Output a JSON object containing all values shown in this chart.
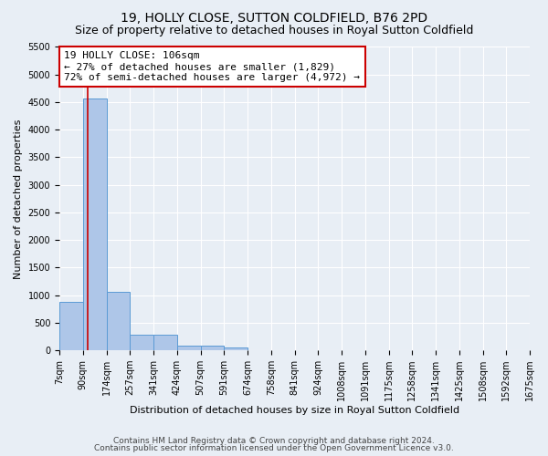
{
  "title": "19, HOLLY CLOSE, SUTTON COLDFIELD, B76 2PD",
  "subtitle": "Size of property relative to detached houses in Royal Sutton Coldfield",
  "xlabel": "Distribution of detached houses by size in Royal Sutton Coldfield",
  "ylabel": "Number of detached properties",
  "footer_line1": "Contains HM Land Registry data © Crown copyright and database right 2024.",
  "footer_line2": "Contains public sector information licensed under the Open Government Licence v3.0.",
  "annotation_title": "19 HOLLY CLOSE: 106sqm",
  "annotation_line1": "← 27% of detached houses are smaller (1,829)",
  "annotation_line2": "72% of semi-detached houses are larger (4,972) →",
  "bin_labels": [
    "7sqm",
    "90sqm",
    "174sqm",
    "257sqm",
    "341sqm",
    "424sqm",
    "507sqm",
    "591sqm",
    "674sqm",
    "758sqm",
    "841sqm",
    "924sqm",
    "1008sqm",
    "1091sqm",
    "1175sqm",
    "1258sqm",
    "1341sqm",
    "1425sqm",
    "1508sqm",
    "1592sqm",
    "1675sqm"
  ],
  "bar_values": [
    880,
    4560,
    1060,
    290,
    290,
    90,
    90,
    50,
    0,
    0,
    0,
    0,
    0,
    0,
    0,
    0,
    0,
    0,
    0,
    0
  ],
  "bar_color": "#aec6e8",
  "bar_edge_color": "#5b9bd5",
  "vline_bin": 1,
  "vline_color": "#cc0000",
  "annotation_box_color": "#ffffff",
  "annotation_box_edge_color": "#cc0000",
  "ylim": [
    0,
    5500
  ],
  "yticks": [
    0,
    500,
    1000,
    1500,
    2000,
    2500,
    3000,
    3500,
    4000,
    4500,
    5000,
    5500
  ],
  "background_color": "#e8eef5",
  "axes_background_color": "#e8eef5",
  "grid_color": "#ffffff",
  "title_fontsize": 10,
  "subtitle_fontsize": 9,
  "axis_label_fontsize": 8,
  "tick_fontsize": 7,
  "annotation_fontsize": 8,
  "footer_fontsize": 6.5
}
